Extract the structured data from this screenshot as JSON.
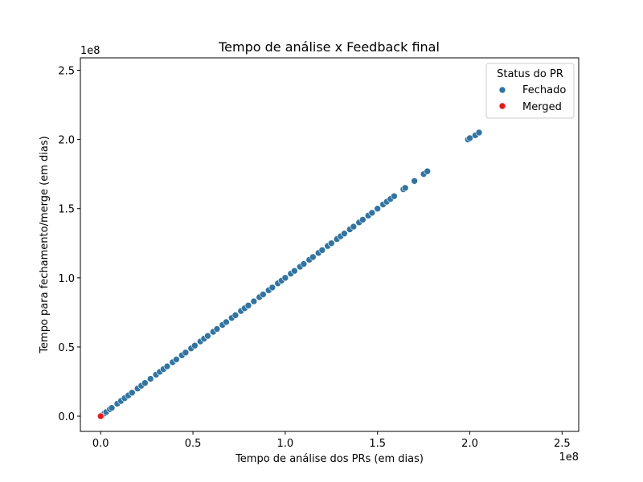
{
  "chart_data": {
    "type": "scatter",
    "title": "Tempo de análise x Feedback final",
    "xlabel": "Tempo de análise dos PRs (em dias)",
    "ylabel": "Tempo para fechamento/merge (em dias)",
    "x_offset_label": "1e8",
    "y_offset_label": "1e8",
    "xlim": [
      -0.11,
      2.59
    ],
    "ylim": [
      -0.11,
      2.59
    ],
    "xticks": [
      0.0,
      0.5,
      1.0,
      1.5,
      2.0,
      2.5
    ],
    "xtick_labels": [
      "0.0",
      "0.5",
      "1.0",
      "1.5",
      "2.0",
      "2.5"
    ],
    "yticks": [
      0.0,
      0.5,
      1.0,
      1.5,
      2.0,
      2.5
    ],
    "ytick_labels": [
      "0.0",
      "0.5",
      "1.0",
      "1.5",
      "2.0",
      "2.5"
    ],
    "grid": false,
    "legend": {
      "title": "Status do PR",
      "placement": "top-right",
      "entries": [
        "Fechado",
        "Merged"
      ]
    },
    "series": [
      {
        "name": "Fechado",
        "color": "#3274a1",
        "points": [
          [
            0.01,
            0.01
          ],
          [
            0.02,
            0.02
          ],
          [
            0.03,
            0.03
          ],
          [
            0.05,
            0.05
          ],
          [
            0.06,
            0.06
          ],
          [
            0.09,
            0.09
          ],
          [
            0.11,
            0.11
          ],
          [
            0.13,
            0.13
          ],
          [
            0.15,
            0.15
          ],
          [
            0.17,
            0.17
          ],
          [
            0.2,
            0.2
          ],
          [
            0.22,
            0.22
          ],
          [
            0.24,
            0.24
          ],
          [
            0.27,
            0.27
          ],
          [
            0.3,
            0.3
          ],
          [
            0.32,
            0.32
          ],
          [
            0.34,
            0.34
          ],
          [
            0.36,
            0.36
          ],
          [
            0.39,
            0.39
          ],
          [
            0.41,
            0.41
          ],
          [
            0.44,
            0.44
          ],
          [
            0.46,
            0.46
          ],
          [
            0.49,
            0.49
          ],
          [
            0.51,
            0.51
          ],
          [
            0.54,
            0.54
          ],
          [
            0.56,
            0.56
          ],
          [
            0.58,
            0.58
          ],
          [
            0.61,
            0.61
          ],
          [
            0.63,
            0.63
          ],
          [
            0.66,
            0.66
          ],
          [
            0.68,
            0.68
          ],
          [
            0.71,
            0.71
          ],
          [
            0.73,
            0.73
          ],
          [
            0.76,
            0.76
          ],
          [
            0.78,
            0.78
          ],
          [
            0.8,
            0.8
          ],
          [
            0.83,
            0.83
          ],
          [
            0.86,
            0.86
          ],
          [
            0.88,
            0.88
          ],
          [
            0.91,
            0.91
          ],
          [
            0.93,
            0.93
          ],
          [
            0.96,
            0.96
          ],
          [
            0.98,
            0.98
          ],
          [
            1.0,
            1.0
          ],
          [
            1.03,
            1.03
          ],
          [
            1.05,
            1.05
          ],
          [
            1.08,
            1.08
          ],
          [
            1.1,
            1.1
          ],
          [
            1.13,
            1.13
          ],
          [
            1.15,
            1.15
          ],
          [
            1.18,
            1.18
          ],
          [
            1.2,
            1.2
          ],
          [
            1.23,
            1.23
          ],
          [
            1.25,
            1.25
          ],
          [
            1.28,
            1.28
          ],
          [
            1.3,
            1.3
          ],
          [
            1.32,
            1.32
          ],
          [
            1.35,
            1.35
          ],
          [
            1.37,
            1.37
          ],
          [
            1.4,
            1.4
          ],
          [
            1.42,
            1.42
          ],
          [
            1.45,
            1.45
          ],
          [
            1.47,
            1.47
          ],
          [
            1.5,
            1.5
          ],
          [
            1.53,
            1.53
          ],
          [
            1.55,
            1.55
          ],
          [
            1.57,
            1.57
          ],
          [
            1.59,
            1.59
          ],
          [
            1.64,
            1.64
          ],
          [
            1.65,
            1.65
          ],
          [
            1.7,
            1.7
          ],
          [
            1.75,
            1.75
          ],
          [
            1.77,
            1.77
          ],
          [
            1.99,
            2.0
          ],
          [
            2.0,
            2.01
          ],
          [
            2.03,
            2.03
          ],
          [
            2.05,
            2.05
          ]
        ]
      },
      {
        "name": "Merged",
        "color": "#e41a1c",
        "points": [
          [
            0.0,
            0.0
          ]
        ]
      }
    ]
  }
}
